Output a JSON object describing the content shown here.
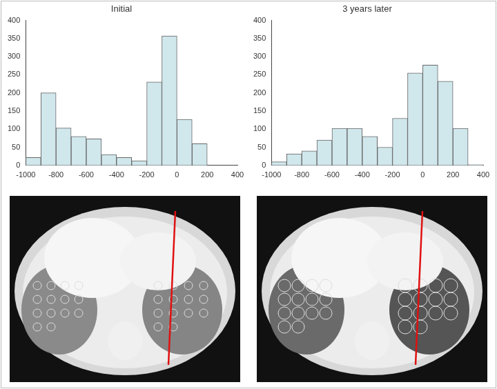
{
  "chart_data": [
    {
      "type": "histogram",
      "title": "Initial",
      "bins": [
        -1000,
        -900,
        -800,
        -700,
        -600,
        -500,
        -400,
        -300,
        -200,
        -100,
        0,
        100,
        200
      ],
      "values": [
        22,
        200,
        103,
        80,
        73,
        30,
        22,
        13,
        230,
        357,
        127,
        60
      ],
      "color": "#d0e7ec",
      "xlim": [
        -1000,
        400
      ],
      "xticks": [
        -1000,
        -800,
        -600,
        -400,
        -200,
        0,
        200,
        400
      ],
      "ylim": [
        0,
        400
      ],
      "yticks": [
        0,
        50,
        100,
        150,
        200,
        250,
        300,
        350,
        400
      ],
      "grid": false
    },
    {
      "type": "histogram",
      "title": "3 years later",
      "bins": [
        -1000,
        -900,
        -800,
        -700,
        -600,
        -500,
        -400,
        -300,
        -200,
        -100,
        0,
        100,
        200,
        300,
        400
      ],
      "values": [
        10,
        32,
        40,
        70,
        102,
        102,
        80,
        50,
        130,
        255,
        277,
        232,
        102,
        2
      ],
      "color": "#d0e7ec",
      "xlim": [
        -1000,
        400
      ],
      "xticks": [
        -1000,
        -800,
        -600,
        -400,
        -200,
        0,
        200,
        400
      ],
      "ylim": [
        0,
        400
      ],
      "yticks": [
        0,
        50,
        100,
        150,
        200,
        250,
        300,
        350,
        400
      ],
      "grid": false
    }
  ]
}
